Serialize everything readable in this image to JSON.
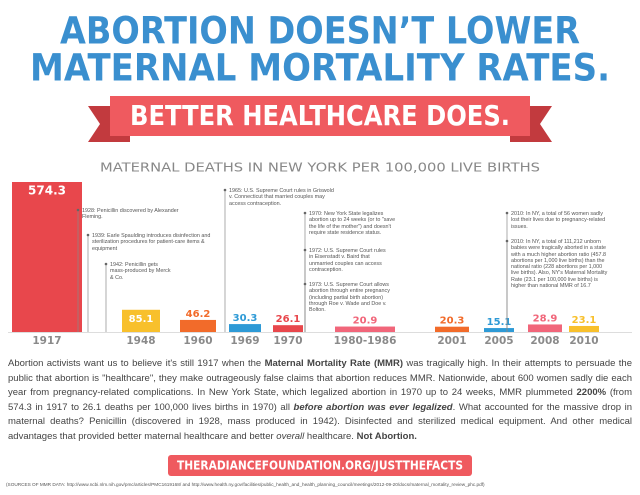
{
  "header": {
    "title_lines": [
      "ABORTION DOESN’T LOWER",
      "MATERNAL MORTALITY RATES."
    ],
    "banner": "BETTER HEALTHCARE DOES."
  },
  "chart_data": {
    "type": "bar",
    "title": "MATERNAL DEATHS IN NEW YORK PER 100,000 LIVE BIRTHS",
    "categories": [
      "1917",
      "1948",
      "1960",
      "1969",
      "1970",
      "1980-1986",
      "2001",
      "2005",
      "2008",
      "2010"
    ],
    "values": [
      574.3,
      85.1,
      46.2,
      30.3,
      26.1,
      20.9,
      20.3,
      15.1,
      28.9,
      23.1
    ],
    "colors": [
      "#e8474c",
      "#f8c02c",
      "#f26b2a",
      "#2e9ad6",
      "#e8474c",
      "#f1667a",
      "#f26b2a",
      "#2e9ad6",
      "#f1667a",
      "#f8c02c"
    ],
    "annotations": [
      "1928: Penicillin discovered by Alexander Fleming.",
      "1939: Earle Spaulding introduces disinfection and sterilization procedures for patient-care items & equipment",
      "1942: Penicillin gets mass-produced by Merck & Co.",
      "1965: U.S. Supreme Court rules in Griswold v. Connecticut that married couples may access contraception.",
      "1970: New York State legalizes abortion up to 24 weeks (or to \"save the life of the mother\") and doesn't require state residence status.",
      "1972: U.S. Supreme Court rules in Eisenstadt v. Baird that unmarried couples can access contraception.",
      "1973: U.S. Supreme Court allows abortion through entire pregnancy (including partial birth abortion) through Roe v. Wade and Doe v. Bolton.",
      "2010: In NY, a total of 56 women sadly lost their lives due to pregnancy-related issues.",
      "2010: In NY, a total of 111,212 unborn babies were tragically aborted in a state with a much higher abortion ratio (457.8 abortions per 1,000 live births) than the national ratio (228 abortions per 1,000 live births). Also, NY's Maternal Mortality Rate (23.1 per 100,000 live births) is higher than national MMR of 16.7"
    ]
  },
  "body": [
    "Abortion activists want us to believe it's still 1917 when the ",
    "Maternal Mortality Rate (MMR)",
    " was tragically high. In their attempts to persuade the public that abortion is \"healthcare\", they make outrageously false claims that abortion reduces MMR. Nationwide, about 600 women sadly die each year from pregnancy-related complications. In New York State, which legalized abortion in 1970 up to 24 weeks, MMR plummeted ",
    "2200%",
    " (from 574.3 in 1917 to 26.1 deaths per 100,000 lives births in 1970) all ",
    "before abortion was ever legalized",
    ". What accounted for the massive drop in maternal deaths? Penicillin (discovered in 1928, mass produced in 1942). Disinfected and sterilized medical equipment. And other medical advantages that provided better maternal healthcare and better ",
    "overall",
    " healthcare. ",
    "Not Abortion."
  ],
  "footer": {
    "link": "THERADIANCEFOUNDATION.ORG/JUSTTHEFACTS",
    "sources": "(SOURCES OF MMR DATA: http://www.ncbi.nlm.nih.gov/pmc/articles/PMC1619168/ and http://www.health.ny.gov/facilities/public_health_and_health_planning_council/meetings/2012-09-20/docs/maternal_mortality_review_phc.pdf)"
  }
}
